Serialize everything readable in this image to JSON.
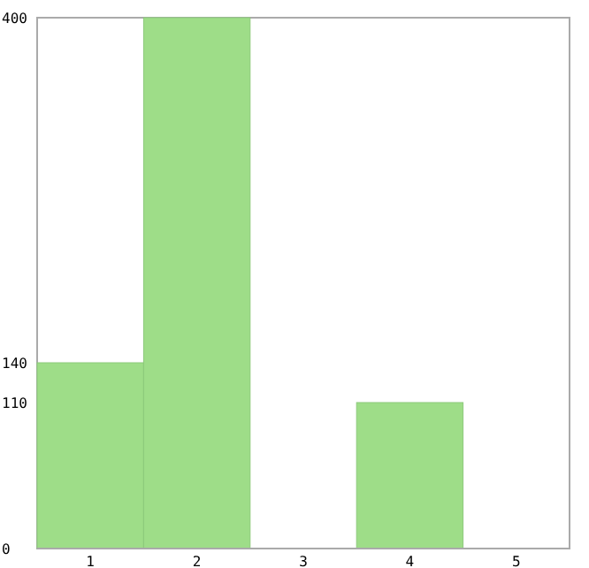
{
  "chart_data": {
    "type": "bar",
    "categories": [
      "1",
      "2",
      "3",
      "4",
      "5"
    ],
    "values": [
      140,
      400,
      0,
      110,
      0
    ],
    "color": "#9edd88",
    "ylim": [
      0,
      400
    ],
    "yticks": [
      0,
      110,
      140,
      400
    ],
    "grid": false
  }
}
